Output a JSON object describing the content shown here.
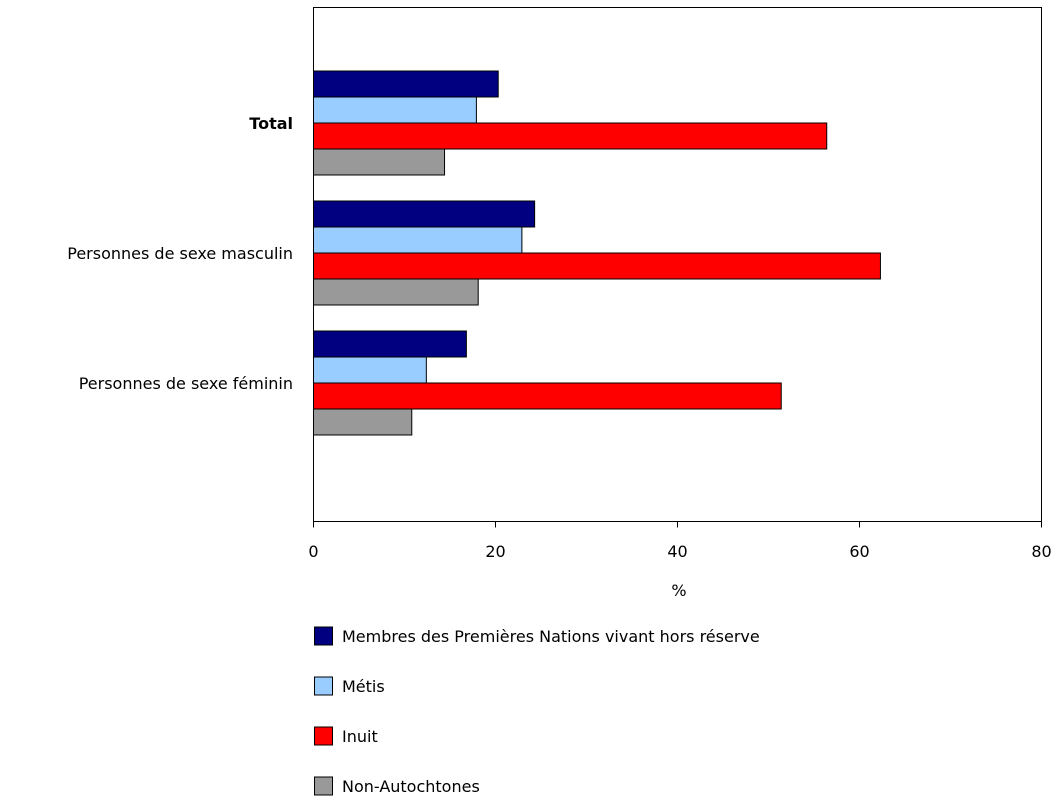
{
  "chart_data": {
    "type": "bar",
    "orientation": "horizontal",
    "categories": [
      "Total",
      "Personnes de sexe masculin",
      "Personnes de sexe féminin"
    ],
    "bold_categories": [
      "Total"
    ],
    "series": [
      {
        "name": "Membres des Premières Nations vivant hors réserve",
        "color": "#000080",
        "values": [
          20.3,
          24.3,
          16.8
        ]
      },
      {
        "name": "Métis",
        "color": "#99ccff",
        "values": [
          17.9,
          22.9,
          12.4
        ]
      },
      {
        "name": "Inuit",
        "color": "#ff0000",
        "values": [
          56.4,
          62.3,
          51.4
        ]
      },
      {
        "name": "Non-Autochtones",
        "color": "#999999",
        "values": [
          14.4,
          18.1,
          10.8
        ]
      }
    ],
    "xlabel": "%",
    "ylabel": "",
    "xlim": [
      0,
      80
    ],
    "xticks": [
      "0",
      "20",
      "40",
      "60",
      "80"
    ],
    "grid": false,
    "legend_position": "bottom"
  }
}
